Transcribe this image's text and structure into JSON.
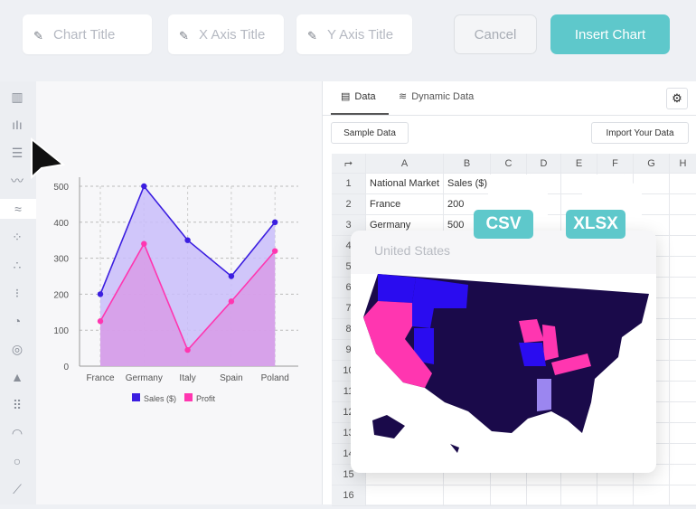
{
  "toolbar": {
    "chart_title_placeholder": "Chart Title",
    "x_axis_placeholder": "X Axis Title",
    "y_axis_placeholder": "Y Axis Title",
    "cancel_label": "Cancel",
    "insert_label": "Insert Chart",
    "accent": "#5ec8cb"
  },
  "sidebar": {
    "icons": [
      "column-chart-icon",
      "histogram-icon",
      "bar-chart-icon",
      "line-chart-icon",
      "area-chart-icon",
      "dot-chart-icon",
      "scatter-icon",
      "scatter-dense-icon",
      "pie-chart-icon",
      "donut-chart-icon",
      "pyramid-icon",
      "waffle-icon",
      "gauge-icon",
      "circle-icon",
      "trend-icon"
    ],
    "active": "area-chart-icon"
  },
  "data_panel": {
    "tabs": [
      {
        "label": "Data",
        "active": true
      },
      {
        "label": "Dynamic Data",
        "active": false
      }
    ],
    "sample_label": "Sample Data",
    "import_label": "Import Your Data",
    "columns": [
      "A",
      "B",
      "C",
      "D",
      "E",
      "F",
      "G",
      "H"
    ],
    "rows": [
      "1",
      "2",
      "3",
      "4",
      "5",
      "6",
      "7",
      "8",
      "9",
      "10",
      "11",
      "12",
      "13",
      "14",
      "15",
      "16"
    ],
    "cells": [
      [
        "National Market",
        "Sales ($)"
      ],
      [
        "France",
        "200"
      ],
      [
        "Germany",
        "500"
      ]
    ]
  },
  "files": {
    "csv": "CSV",
    "xlsx": "XLSX"
  },
  "map": {
    "title": "United States",
    "colors": {
      "base": "#1a0a4a",
      "blue": "#2a0cf0",
      "pink": "#ff36b0",
      "lavender": "#9b86f0"
    }
  },
  "chart_data": {
    "type": "area",
    "categories": [
      "France",
      "Germany",
      "Italy",
      "Spain",
      "Poland"
    ],
    "series": [
      {
        "name": "Sales ($)",
        "values": [
          200,
          500,
          350,
          250,
          400
        ],
        "color": "#3b1ee0",
        "fill": "#c9bdfa"
      },
      {
        "name": "Profit",
        "values": [
          125,
          340,
          45,
          180,
          320
        ],
        "color": "#ff36b0",
        "fill": "#d89be6"
      }
    ],
    "yticks": [
      0,
      100,
      200,
      300,
      400,
      500
    ],
    "ylim": [
      0,
      500
    ],
    "grid": true,
    "legend": "bottom"
  }
}
